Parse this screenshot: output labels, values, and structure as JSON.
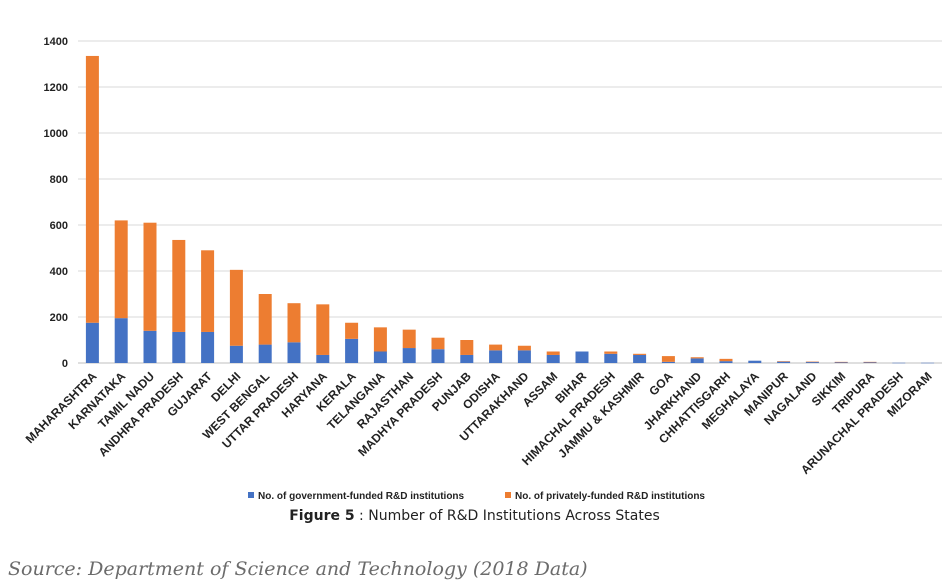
{
  "chart_data": {
    "type": "bar",
    "stacked": true,
    "categories": [
      "MAHARASHTRA",
      "KARNATAKA",
      "TAMIL NADU",
      "ANDHRA PRADESH",
      "GUJARAT",
      "DELHI",
      "WEST BENGAL",
      "UTTAR PRADESH",
      "HARYANA",
      "KERALA",
      "TELANGANA",
      "RAJASTHAN",
      "MADHYA PRADESH",
      "PUNJAB",
      "ODISHA",
      "UTTARAKHAND",
      "ASSAM",
      "BIHAR",
      "HIMACHAL PRADESH",
      "JAMMU & KASHMIR",
      "GOA",
      "JHARKHAND",
      "CHHATTISGARH",
      "MEGHALAYA",
      "MANIPUR",
      "NAGALAND",
      "SIKKIM",
      "TRIPURA",
      "ARUNACHAL PRADESH",
      "MIZORAM"
    ],
    "series": [
      {
        "name": "No. of government-funded R&D institutions",
        "color": "#4472C4",
        "values": [
          175,
          195,
          140,
          135,
          135,
          75,
          80,
          90,
          35,
          105,
          50,
          65,
          60,
          35,
          55,
          55,
          35,
          50,
          40,
          35,
          5,
          20,
          8,
          10,
          6,
          5,
          4,
          4,
          1,
          1
        ]
      },
      {
        "name": "No. of privately-funded R&D institutions",
        "color": "#ED7D31",
        "values": [
          1160,
          425,
          470,
          400,
          355,
          330,
          220,
          170,
          220,
          70,
          105,
          80,
          50,
          65,
          25,
          20,
          15,
          0,
          10,
          5,
          25,
          5,
          10,
          0,
          2,
          1,
          1,
          1,
          0,
          0
        ]
      }
    ],
    "ylim": [
      0,
      1400
    ],
    "yticks": [
      0,
      200,
      400,
      600,
      800,
      1000,
      1200,
      1400
    ],
    "grid": true,
    "legend_position": "bottom"
  },
  "caption": {
    "prefix": "Figure 5",
    "text": " : Number of R&D Institutions Across States"
  },
  "source": "Source: Department of Science and Technology (2018 Data)"
}
